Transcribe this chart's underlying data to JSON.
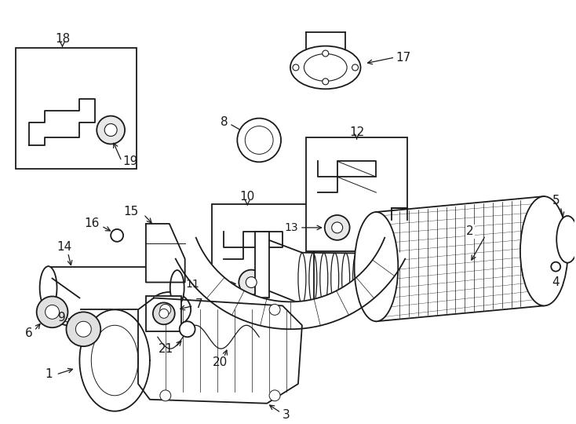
{
  "bg_color": "#ffffff",
  "line_color": "#1a1a1a",
  "fig_width": 7.34,
  "fig_height": 5.4,
  "dpi": 100,
  "lw_main": 1.3,
  "lw_thin": 0.7,
  "font_size": 10
}
